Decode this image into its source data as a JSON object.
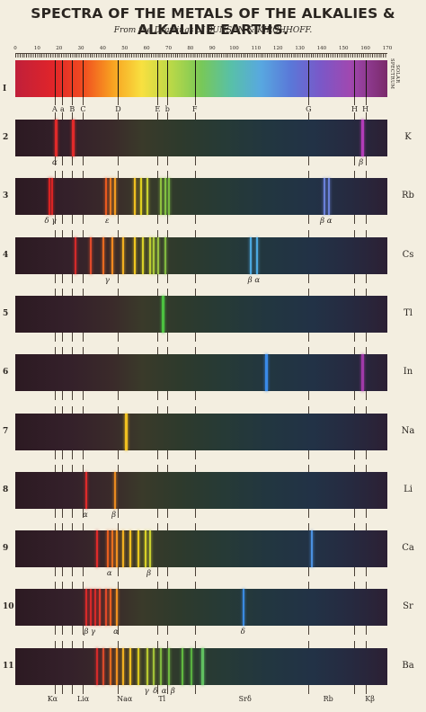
{
  "title": "SPECTRA OF THE METALS OF THE ALKALIES & ALKALINE EARTHS.",
  "subtitle": "From the Drawings of BUNSEN & KIRCHHOFF.",
  "scale": [
    "0",
    "10",
    "20",
    "30",
    "40",
    "50",
    "60",
    "70",
    "80",
    "90",
    "100",
    "110",
    "120",
    "130",
    "140",
    "150",
    "160",
    "170"
  ],
  "solar_label": "SOLAR SPECTRUM",
  "fraunhofer": [
    {
      "label": "A",
      "pos": 18
    },
    {
      "label": "a",
      "pos": 21.5
    },
    {
      "label": "B",
      "pos": 26
    },
    {
      "label": "C",
      "pos": 31
    },
    {
      "label": "D",
      "pos": 47
    },
    {
      "label": "E",
      "pos": 65
    },
    {
      "label": "b",
      "pos": 69.5
    },
    {
      "label": "F",
      "pos": 82
    },
    {
      "label": "G",
      "pos": 134
    },
    {
      "label": "H",
      "pos": 155
    },
    {
      "label": "H",
      "pos": 160
    }
  ],
  "rows": [
    {
      "num": "2",
      "element": "K",
      "lines": [
        {
          "p": 18,
          "c": "#e02a2a",
          "w": 3
        },
        {
          "p": 26,
          "c": "#e02a2a",
          "w": 3
        },
        {
          "p": 158,
          "c": "#b23cb8",
          "w": 3
        }
      ],
      "greek": [
        {
          "t": "α",
          "p": 18
        },
        {
          "t": "β",
          "p": 158
        }
      ]
    },
    {
      "num": "3",
      "element": "Rb",
      "lines": [
        {
          "p": 15,
          "c": "#d92424",
          "w": 2
        },
        {
          "p": 16.5,
          "c": "#d92424",
          "w": 2
        },
        {
          "p": 41,
          "c": "#e85a20",
          "w": 2
        },
        {
          "p": 43,
          "c": "#e87a20",
          "w": 2
        },
        {
          "p": 45,
          "c": "#f09a20",
          "w": 2
        },
        {
          "p": 54,
          "c": "#f0c020",
          "w": 2
        },
        {
          "p": 57,
          "c": "#e0d020",
          "w": 2
        },
        {
          "p": 60,
          "c": "#c8d030",
          "w": 2
        },
        {
          "p": 66,
          "c": "#90c040",
          "w": 2
        },
        {
          "p": 68,
          "c": "#80c040",
          "w": 2
        },
        {
          "p": 70,
          "c": "#78b840",
          "w": 2
        },
        {
          "p": 141,
          "c": "#6a80d8",
          "w": 2
        },
        {
          "p": 143,
          "c": "#6a80d8",
          "w": 2
        }
      ],
      "greek": [
        {
          "t": "δ γ",
          "p": 16
        },
        {
          "t": "ε",
          "p": 42
        },
        {
          "t": "β α",
          "p": 142
        }
      ]
    },
    {
      "num": "4",
      "element": "Cs",
      "lines": [
        {
          "p": 27,
          "c": "#d22a2a",
          "w": 2
        },
        {
          "p": 34,
          "c": "#e04a2a",
          "w": 2
        },
        {
          "p": 40,
          "c": "#e86a20",
          "w": 2
        },
        {
          "p": 44,
          "c": "#f08a20",
          "w": 2
        },
        {
          "p": 49,
          "c": "#f0b020",
          "w": 2
        },
        {
          "p": 54,
          "c": "#f0c820",
          "w": 2
        },
        {
          "p": 58,
          "c": "#d8d028",
          "w": 2
        },
        {
          "p": 61,
          "c": "#c0cc30",
          "w": 2
        },
        {
          "p": 63,
          "c": "#a8c838",
          "w": 2
        },
        {
          "p": 65,
          "c": "#98c040",
          "w": 2
        },
        {
          "p": 68,
          "c": "#80b840",
          "w": 2
        },
        {
          "p": 107,
          "c": "#4ca8e0",
          "w": 2
        },
        {
          "p": 110,
          "c": "#4ca8e0",
          "w": 2
        }
      ],
      "greek": [
        {
          "t": "γ",
          "p": 42
        },
        {
          "t": "β α",
          "p": 109
        }
      ]
    },
    {
      "num": "5",
      "element": "Tl",
      "lines": [
        {
          "p": 67,
          "c": "#4cc040",
          "w": 3
        }
      ],
      "greek": []
    },
    {
      "num": "6",
      "element": "In",
      "lines": [
        {
          "p": 114,
          "c": "#3a8ae8",
          "w": 3
        },
        {
          "p": 158,
          "c": "#a03aa8",
          "w": 3
        }
      ],
      "greek": []
    },
    {
      "num": "7",
      "element": "Na",
      "lines": [
        {
          "p": 50,
          "c": "#f0c020",
          "w": 3
        }
      ],
      "greek": []
    },
    {
      "num": "8",
      "element": "Li",
      "lines": [
        {
          "p": 32,
          "c": "#e02a2a",
          "w": 2
        },
        {
          "p": 45,
          "c": "#e88a20",
          "w": 2
        }
      ],
      "greek": [
        {
          "t": "α",
          "p": 32
        },
        {
          "t": "β",
          "p": 45
        }
      ]
    },
    {
      "num": "9",
      "element": "Ca",
      "lines": [
        {
          "p": 37,
          "c": "#e02a2a",
          "w": 2
        },
        {
          "p": 42,
          "c": "#e86020",
          "w": 2
        },
        {
          "p": 44,
          "c": "#e87020",
          "w": 2
        },
        {
          "p": 46,
          "c": "#f09020",
          "w": 2
        },
        {
          "p": 49,
          "c": "#f0b020",
          "w": 2
        },
        {
          "p": 52,
          "c": "#f0c020",
          "w": 2
        },
        {
          "p": 56,
          "c": "#e8c820",
          "w": 2
        },
        {
          "p": 59,
          "c": "#d8d028",
          "w": 2
        },
        {
          "p": 61,
          "c": "#c8d030",
          "w": 2
        },
        {
          "p": 135,
          "c": "#4a90e0",
          "w": 2
        }
      ],
      "greek": [
        {
          "t": "α",
          "p": 43
        },
        {
          "t": "β",
          "p": 61
        }
      ]
    },
    {
      "num": "10",
      "element": "Sr",
      "lines": [
        {
          "p": 32,
          "c": "#d82a2a",
          "w": 2
        },
        {
          "p": 34,
          "c": "#d82a2a",
          "w": 2
        },
        {
          "p": 36,
          "c": "#d82a2a",
          "w": 2
        },
        {
          "p": 38,
          "c": "#e03a2a",
          "w": 2
        },
        {
          "p": 41,
          "c": "#e04a2a",
          "w": 2
        },
        {
          "p": 43,
          "c": "#e86020",
          "w": 2
        },
        {
          "p": 46,
          "c": "#f09020",
          "w": 2
        },
        {
          "p": 104,
          "c": "#3a8ae0",
          "w": 2
        }
      ],
      "greek": [
        {
          "t": "β γ",
          "p": 34
        },
        {
          "t": "α",
          "p": 46
        },
        {
          "t": "δ",
          "p": 104
        }
      ]
    },
    {
      "num": "11",
      "element": "Ba",
      "lines": [
        {
          "p": 37,
          "c": "#d42a2a",
          "w": 2
        },
        {
          "p": 40,
          "c": "#d84a2a",
          "w": 2
        },
        {
          "p": 43,
          "c": "#e06a20",
          "w": 2
        },
        {
          "p": 46,
          "c": "#f09020",
          "w": 2
        },
        {
          "p": 49,
          "c": "#f0b020",
          "w": 2
        },
        {
          "p": 52,
          "c": "#f0c020",
          "w": 2
        },
        {
          "p": 56,
          "c": "#d8c820",
          "w": 2
        },
        {
          "p": 60,
          "c": "#b8c830",
          "w": 2
        },
        {
          "p": 63,
          "c": "#a0c038",
          "w": 2
        },
        {
          "p": 66,
          "c": "#80b840",
          "w": 2
        },
        {
          "p": 70,
          "c": "#70b840",
          "w": 2
        },
        {
          "p": 76,
          "c": "#60b840",
          "w": 2
        },
        {
          "p": 80,
          "c": "#58b040",
          "w": 2
        },
        {
          "p": 85,
          "c": "#60c060",
          "w": 3
        }
      ],
      "greek": [
        {
          "t": "γ",
          "p": 60
        },
        {
          "t": "δ",
          "p": 64
        },
        {
          "t": "α",
          "p": 68
        },
        {
          "t": "β",
          "p": 72
        }
      ]
    }
  ],
  "bottom_labels": [
    {
      "label": "Kα",
      "pos": 17
    },
    {
      "label": "Liα",
      "pos": 31
    },
    {
      "label": "Naα",
      "pos": 50
    },
    {
      "label": "Tl",
      "pos": 67
    },
    {
      "label": "Srδ",
      "pos": 105
    },
    {
      "label": "Rb",
      "pos": 143
    },
    {
      "label": "Kβ",
      "pos": 162
    }
  ]
}
